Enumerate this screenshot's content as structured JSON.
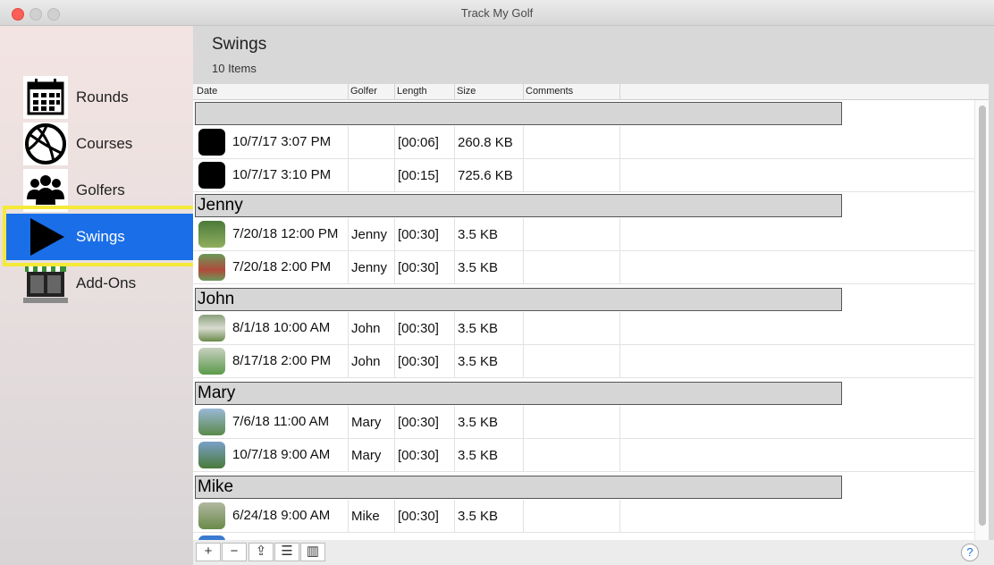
{
  "window": {
    "title": "Track My Golf"
  },
  "sidebar": {
    "items": [
      {
        "label": "Rounds",
        "icon": "calendar-icon"
      },
      {
        "label": "Courses",
        "icon": "globe-icon"
      },
      {
        "label": "Golfers",
        "icon": "people-icon"
      },
      {
        "label": "Swings",
        "icon": "play-icon",
        "active": true
      },
      {
        "label": "Add-Ons",
        "icon": "store-icon"
      }
    ]
  },
  "main": {
    "title": "Swings",
    "count": "10 Items",
    "columns": [
      "Date",
      "Golfer",
      "Length",
      "Size",
      "Comments"
    ],
    "groups": [
      {
        "name": "",
        "rows": [
          {
            "date": "10/7/17 3:07 PM",
            "golfer": "",
            "length": "[00:06]",
            "size": "260.8 KB"
          },
          {
            "date": "10/7/17 3:10 PM",
            "golfer": "",
            "length": "[00:15]",
            "size": "725.6 KB"
          }
        ]
      },
      {
        "name": "Jenny",
        "rows": [
          {
            "date": "7/20/18 12:00 PM",
            "golfer": "Jenny",
            "length": "[00:30]",
            "size": "3.5 KB"
          },
          {
            "date": "7/20/18 2:00 PM",
            "golfer": "Jenny",
            "length": "[00:30]",
            "size": "3.5 KB"
          }
        ]
      },
      {
        "name": "John",
        "rows": [
          {
            "date": "8/1/18 10:00 AM",
            "golfer": "John",
            "length": "[00:30]",
            "size": "3.5 KB"
          },
          {
            "date": "8/17/18 2:00 PM",
            "golfer": "John",
            "length": "[00:30]",
            "size": "3.5 KB"
          }
        ]
      },
      {
        "name": "Mary",
        "rows": [
          {
            "date": "7/6/18 11:00 AM",
            "golfer": "Mary",
            "length": "[00:30]",
            "size": "3.5 KB"
          },
          {
            "date": "10/7/18 9:00 AM",
            "golfer": "Mary",
            "length": "[00:30]",
            "size": "3.5 KB"
          }
        ]
      },
      {
        "name": "Mike",
        "rows": [
          {
            "date": "6/24/18 9:00 AM",
            "golfer": "Mike",
            "length": "[00:30]",
            "size": "3.5 KB"
          }
        ]
      }
    ]
  },
  "bottombar": {
    "add": "+",
    "remove": "−",
    "share": "⇪",
    "list": "☰",
    "columns": "▥",
    "help": "?"
  },
  "colors": {
    "accent": "#1a6ee8",
    "highlight": "#f5e93a"
  }
}
